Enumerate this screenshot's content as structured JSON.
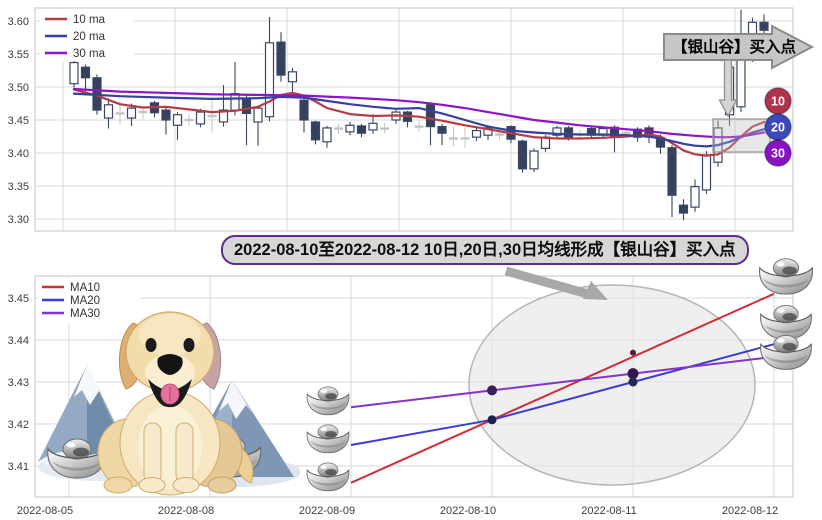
{
  "banner": {
    "text": "2022-08-10至2022-08-12 10日,20日,30日均线形成【银山谷】买入点"
  },
  "chart_data": [
    {
      "type": "candlestick",
      "title": "",
      "legend": [
        {
          "label": "10 ma",
          "color": "#b73b42"
        },
        {
          "label": "20 ma",
          "color": "#35409f"
        },
        {
          "label": "30 ma",
          "color": "#8d15c5"
        }
      ],
      "yticks": [
        3.6,
        3.55,
        3.5,
        3.45,
        3.4,
        3.35,
        3.3
      ],
      "ylim": [
        3.282,
        3.62
      ],
      "grid": true,
      "candle_up_style": "hollow",
      "candle_down_color": "#35425e",
      "flat_color": "#c4c4c4",
      "candles": [
        [
          "u",
          3.505,
          3.537,
          3.545,
          3.499
        ],
        [
          "d",
          3.53,
          3.514,
          3.534,
          3.487
        ],
        [
          "d",
          3.514,
          3.465,
          3.519,
          3.458
        ],
        [
          "u",
          3.453,
          3.473,
          3.483,
          3.437
        ],
        [
          "f",
          3.46,
          3.478,
          3.443
        ],
        [
          "u",
          3.453,
          3.468,
          3.475,
          3.441
        ],
        [
          "f",
          3.462,
          3.47,
          3.452
        ],
        [
          "d",
          3.476,
          3.461,
          3.479,
          3.454
        ],
        [
          "d",
          3.465,
          3.45,
          3.469,
          3.428
        ],
        [
          "u",
          3.442,
          3.458,
          3.462,
          3.42
        ],
        [
          "f",
          3.45,
          3.458,
          3.441
        ],
        [
          "u",
          3.444,
          3.462,
          3.467,
          3.439
        ],
        [
          "f",
          3.456,
          3.48,
          3.431
        ],
        [
          "u",
          3.447,
          3.465,
          3.503,
          3.44
        ],
        [
          "u",
          3.465,
          3.49,
          3.538,
          3.457
        ],
        [
          "d",
          3.483,
          3.46,
          3.489,
          3.412
        ],
        [
          "u",
          3.447,
          3.468,
          3.472,
          3.411
        ],
        [
          "u",
          3.455,
          3.567,
          3.606,
          3.448
        ],
        [
          "d",
          3.568,
          3.518,
          3.583,
          3.508
        ],
        [
          "u",
          3.508,
          3.523,
          3.529,
          3.489
        ],
        [
          "d",
          3.48,
          3.45,
          3.488,
          3.431
        ],
        [
          "d",
          3.447,
          3.42,
          3.449,
          3.413
        ],
        [
          "u",
          3.417,
          3.438,
          3.441,
          3.408
        ],
        [
          "f",
          3.437,
          3.444,
          3.429
        ],
        [
          "u",
          3.432,
          3.442,
          3.447,
          3.427
        ],
        [
          "d",
          3.441,
          3.43,
          3.444,
          3.424
        ],
        [
          "u",
          3.435,
          3.445,
          3.459,
          3.429
        ],
        [
          "f",
          3.437,
          3.445,
          3.43
        ],
        [
          "u",
          3.45,
          3.462,
          3.465,
          3.444
        ],
        [
          "d",
          3.462,
          3.448,
          3.464,
          3.439
        ],
        [
          "f",
          3.44,
          3.448,
          3.432
        ],
        [
          "d",
          3.473,
          3.44,
          3.477,
          3.412
        ],
        [
          "d",
          3.44,
          3.43,
          3.444,
          3.412
        ],
        [
          "f",
          3.422,
          3.44,
          3.41
        ],
        [
          "f",
          3.422,
          3.438,
          3.408
        ],
        [
          "u",
          3.424,
          3.434,
          3.438,
          3.418
        ],
        [
          "u",
          3.427,
          3.438,
          3.442,
          3.42
        ],
        [
          "f",
          3.428,
          3.436,
          3.42
        ],
        [
          "d",
          3.44,
          3.421,
          3.442,
          3.415
        ],
        [
          "d",
          3.418,
          3.376,
          3.42,
          3.37
        ],
        [
          "u",
          3.376,
          3.403,
          3.407,
          3.371
        ],
        [
          "u",
          3.407,
          3.424,
          3.427,
          3.402
        ],
        [
          "u",
          3.427,
          3.438,
          3.441,
          3.422
        ],
        [
          "d",
          3.438,
          3.424,
          3.441,
          3.419
        ],
        [
          "f",
          3.428,
          3.435,
          3.421
        ],
        [
          "d",
          3.437,
          3.427,
          3.44,
          3.422
        ],
        [
          "u",
          3.427,
          3.437,
          3.44,
          3.423
        ],
        [
          "d",
          3.439,
          3.424,
          3.442,
          3.401
        ],
        [
          "f",
          3.43,
          3.437,
          3.423
        ],
        [
          "d",
          3.436,
          3.424,
          3.439,
          3.417
        ],
        [
          "d",
          3.438,
          3.424,
          3.442,
          3.415
        ],
        [
          "d",
          3.423,
          3.409,
          3.428,
          3.399
        ],
        [
          "d",
          3.408,
          3.336,
          3.412,
          3.303
        ],
        [
          "d",
          3.321,
          3.309,
          3.33,
          3.298
        ],
        [
          "u",
          3.318,
          3.349,
          3.36,
          3.311
        ],
        [
          "u",
          3.344,
          3.397,
          3.403,
          3.338
        ],
        [
          "u",
          3.386,
          3.438,
          3.449,
          3.379
        ],
        [
          "u",
          3.458,
          3.53,
          3.538,
          3.441
        ],
        [
          "u",
          3.47,
          3.55,
          3.617,
          3.462
        ],
        [
          "u",
          3.544,
          3.598,
          3.605,
          3.538
        ],
        [
          "d",
          3.598,
          3.586,
          3.61,
          3.581
        ]
      ],
      "ma_series": [
        {
          "name": "ma10",
          "color": "#b73b42",
          "points": [
            [
              0,
              3.496
            ],
            [
              2,
              3.487
            ],
            [
              4,
              3.474
            ],
            [
              6,
              3.469
            ],
            [
              8,
              3.47
            ],
            [
              10,
              3.466
            ],
            [
              12,
              3.462
            ],
            [
              14,
              3.464
            ],
            [
              16,
              3.47
            ],
            [
              17,
              3.478
            ],
            [
              18,
              3.488
            ],
            [
              19,
              3.491
            ],
            [
              20,
              3.487
            ],
            [
              21,
              3.478
            ],
            [
              22,
              3.468
            ],
            [
              24,
              3.459
            ],
            [
              26,
              3.456
            ],
            [
              28,
              3.457
            ],
            [
              30,
              3.455
            ],
            [
              32,
              3.449
            ],
            [
              34,
              3.442
            ],
            [
              36,
              3.436
            ],
            [
              38,
              3.43
            ],
            [
              40,
              3.424
            ],
            [
              42,
              3.422
            ],
            [
              44,
              3.422
            ],
            [
              46,
              3.423
            ],
            [
              48,
              3.425
            ],
            [
              50,
              3.428
            ],
            [
              51,
              3.425
            ],
            [
              52,
              3.415
            ],
            [
              53,
              3.404
            ],
            [
              54,
              3.398
            ],
            [
              55,
              3.396
            ],
            [
              56,
              3.398
            ],
            [
              57,
              3.408
            ],
            [
              58,
              3.425
            ],
            [
              59,
              3.44
            ],
            [
              60,
              3.447
            ]
          ]
        },
        {
          "name": "ma20",
          "color": "#35409f",
          "points": [
            [
              0,
              3.49
            ],
            [
              4,
              3.486
            ],
            [
              8,
              3.484
            ],
            [
              12,
              3.482
            ],
            [
              16,
              3.483
            ],
            [
              18,
              3.485
            ],
            [
              20,
              3.484
            ],
            [
              22,
              3.479
            ],
            [
              24,
              3.474
            ],
            [
              26,
              3.47
            ],
            [
              28,
              3.467
            ],
            [
              30,
              3.468
            ],
            [
              32,
              3.46
            ],
            [
              34,
              3.45
            ],
            [
              36,
              3.44
            ],
            [
              38,
              3.434
            ],
            [
              40,
              3.431
            ],
            [
              42,
              3.429
            ],
            [
              44,
              3.428
            ],
            [
              46,
              3.428
            ],
            [
              48,
              3.427
            ],
            [
              50,
              3.425
            ],
            [
              51,
              3.422
            ],
            [
              52,
              3.418
            ],
            [
              53,
              3.414
            ],
            [
              54,
              3.411
            ],
            [
              55,
              3.41
            ],
            [
              56,
              3.412
            ],
            [
              57,
              3.417
            ],
            [
              58,
              3.424
            ],
            [
              59,
              3.431
            ],
            [
              60,
              3.436
            ]
          ]
        },
        {
          "name": "ma30",
          "color": "#8d15c5",
          "points": [
            [
              0,
              3.497
            ],
            [
              4,
              3.493
            ],
            [
              8,
              3.491
            ],
            [
              12,
              3.489
            ],
            [
              16,
              3.488
            ],
            [
              20,
              3.487
            ],
            [
              24,
              3.484
            ],
            [
              28,
              3.48
            ],
            [
              30,
              3.477
            ],
            [
              32,
              3.473
            ],
            [
              34,
              3.468
            ],
            [
              36,
              3.462
            ],
            [
              38,
              3.456
            ],
            [
              40,
              3.45
            ],
            [
              42,
              3.446
            ],
            [
              44,
              3.442
            ],
            [
              46,
              3.439
            ],
            [
              48,
              3.436
            ],
            [
              50,
              3.433
            ],
            [
              52,
              3.429
            ],
            [
              54,
              3.426
            ],
            [
              56,
              3.424
            ],
            [
              57,
              3.424
            ],
            [
              58,
              3.425
            ],
            [
              59,
              3.428
            ],
            [
              60,
              3.431
            ]
          ]
        }
      ],
      "annotations": {
        "buy_label": "【银山谷】买入点",
        "badges": [
          {
            "label": "10",
            "color": "#b23349"
          },
          {
            "label": "20",
            "color": "#3b49bb"
          },
          {
            "label": "30",
            "color": "#8b10c5"
          }
        ]
      }
    },
    {
      "type": "line",
      "categories": [
        "2022-08-05",
        "2022-08-08",
        "2022-08-09",
        "2022-08-10",
        "2022-08-11",
        "2022-08-12"
      ],
      "yticks": [
        3.45,
        3.44,
        3.43,
        3.42,
        3.41
      ],
      "ylim": [
        3.403,
        3.455
      ],
      "legend_position": "upper left",
      "legend": [
        {
          "label": "MA10",
          "color": "#cf2e39"
        },
        {
          "label": "MA20",
          "color": "#3c3cd0"
        },
        {
          "label": "MA30",
          "color": "#8633cc"
        }
      ],
      "series": [
        {
          "name": "MA10",
          "color": "#cf2e39",
          "x": [
            "2022-08-09",
            "2022-08-10",
            "2022-08-11",
            "2022-08-12"
          ],
          "values": [
            3.406,
            3.421,
            3.436,
            3.451
          ]
        },
        {
          "name": "MA20",
          "color": "#3c3cd0",
          "x": [
            "2022-08-09",
            "2022-08-10",
            "2022-08-11",
            "2022-08-12"
          ],
          "values": [
            3.415,
            3.421,
            3.43,
            3.439
          ]
        },
        {
          "name": "MA30",
          "color": "#8633cc",
          "x": [
            "2022-08-09",
            "2022-08-10",
            "2022-08-11",
            "2022-08-12"
          ],
          "values": [
            3.424,
            3.428,
            3.432,
            3.436
          ]
        }
      ],
      "markers": [
        {
          "x": "2022-08-10",
          "v": 3.428,
          "r": 5,
          "color": "#3a1f5c"
        },
        {
          "x": "2022-08-10",
          "v": 3.421,
          "r": 4.5,
          "color": "#20204a"
        },
        {
          "x": "2022-08-11",
          "v": 3.437,
          "r": 3,
          "color": "#55202c"
        },
        {
          "x": "2022-08-11",
          "v": 3.432,
          "r": 5.5,
          "color": "#331952"
        },
        {
          "x": "2022-08-11",
          "v": 3.43,
          "r": 4.5,
          "color": "#202a56"
        }
      ]
    }
  ]
}
